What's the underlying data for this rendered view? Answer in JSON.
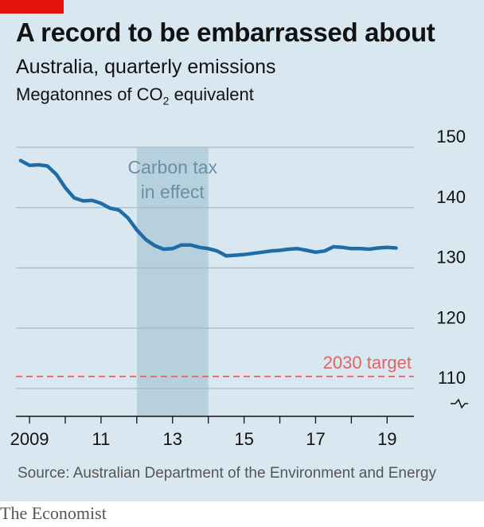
{
  "header": {
    "title": "A record to be embarrassed about",
    "subtitle": "Australia, quarterly emissions",
    "unit_prefix": "Megatonnes of CO",
    "unit_sub": "2",
    "unit_suffix": " equivalent"
  },
  "footer": {
    "source": "Source: Australian Department of the Environment and Energy",
    "brand": "The Economist"
  },
  "colors": {
    "line": "#1f6ca6",
    "target": "#e06463",
    "band": "#b6d0de",
    "band_text": "#6b8fa6",
    "grid": "#aab8c2",
    "axis": "#121212",
    "red_tag": "#e3120b"
  },
  "chart_data": {
    "type": "line",
    "title": "A record to be embarrassed about",
    "subtitle": "Australia, quarterly emissions",
    "ylabel": "Megatonnes of CO2 equivalent",
    "ylim": [
      106,
      150
    ],
    "y_ticks": [
      150,
      140,
      130,
      120,
      110
    ],
    "y_break": true,
    "x_tick_labels": [
      {
        "year": 2009,
        "label": "2009"
      },
      {
        "year": 2011,
        "label": "11"
      },
      {
        "year": 2013,
        "label": "13"
      },
      {
        "year": 2015,
        "label": "15"
      },
      {
        "year": 2017,
        "label": "17"
      },
      {
        "year": 2019,
        "label": "19"
      }
    ],
    "xlim": [
      2008.62,
      2019.75
    ],
    "grid": true,
    "y_axis_side": "right",
    "shaded_region": {
      "start": 2012.0,
      "end": 2014.0,
      "label_lines": [
        "Carbon tax",
        "in effect"
      ]
    },
    "reference_line": {
      "value": 112,
      "label": "2030 target"
    },
    "series": [
      {
        "x": [
          2008.75,
          2009.0,
          2009.25,
          2009.5,
          2009.75,
          2010.0,
          2010.25,
          2010.5,
          2010.75,
          2011.0,
          2011.25,
          2011.5,
          2011.75,
          2012.0,
          2012.25,
          2012.5,
          2012.75,
          2013.0,
          2013.25,
          2013.5,
          2013.75,
          2014.0,
          2014.25,
          2014.5,
          2014.75,
          2015.0,
          2015.25,
          2015.5,
          2015.75,
          2016.0,
          2016.25,
          2016.5,
          2016.75,
          2017.0,
          2017.25,
          2017.5,
          2017.75,
          2018.0,
          2018.25,
          2018.5,
          2018.75,
          2019.0,
          2019.25
        ],
        "values": [
          147.8,
          147.0,
          147.1,
          146.9,
          145.5,
          143.3,
          141.6,
          141.1,
          141.2,
          140.7,
          139.9,
          139.6,
          138.3,
          136.3,
          134.7,
          133.7,
          133.1,
          133.2,
          133.8,
          133.8,
          133.4,
          133.2,
          132.8,
          132.0,
          132.1,
          132.2,
          132.4,
          132.6,
          132.8,
          132.9,
          133.1,
          133.2,
          132.9,
          132.6,
          132.8,
          133.5,
          133.4,
          133.2,
          133.2,
          133.1,
          133.3,
          133.4,
          133.3
        ]
      }
    ]
  }
}
